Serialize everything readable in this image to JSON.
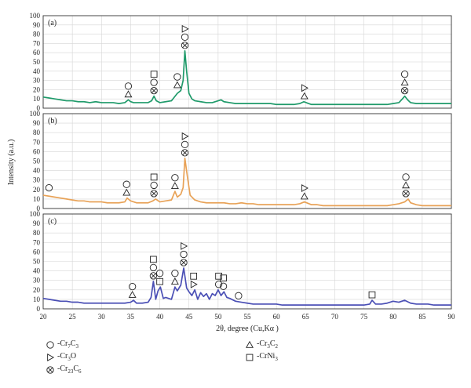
{
  "chart_data": [
    {
      "type": "line",
      "panel_label": "(a)",
      "color": "#1f9a6a",
      "ylim": [
        0,
        100
      ],
      "yticks": [
        0,
        10,
        20,
        30,
        40,
        50,
        60,
        70,
        80,
        90,
        100
      ],
      "x": [
        20,
        21,
        22,
        23,
        24,
        25,
        26,
        27,
        28,
        29,
        30,
        31,
        32,
        33,
        34,
        34.6,
        35,
        35.5,
        36,
        37,
        38,
        38.6,
        39,
        39.4,
        40,
        41,
        42,
        42.5,
        43,
        43.6,
        44,
        44.3,
        44.6,
        45,
        45.5,
        46,
        47,
        48,
        49,
        50,
        50.5,
        51,
        52,
        53,
        54,
        55,
        56,
        57,
        58,
        59,
        60,
        61,
        62,
        63,
        64,
        64.7,
        65.5,
        66,
        67,
        68,
        69,
        70,
        71,
        72,
        73,
        74,
        75,
        76,
        77,
        78,
        79,
        80,
        81,
        81.6,
        82,
        82.5,
        83,
        84,
        85,
        86,
        87,
        88,
        89,
        90
      ],
      "values": [
        12,
        11,
        10,
        9,
        8,
        8,
        7,
        7,
        6,
        7,
        6,
        6,
        6,
        5,
        6,
        9,
        7,
        6,
        6,
        6,
        6,
        8,
        13,
        8,
        6,
        7,
        8,
        12,
        16,
        19,
        30,
        62,
        40,
        16,
        10,
        8,
        7,
        6,
        6,
        8,
        9,
        7,
        6,
        5,
        5,
        5,
        5,
        5,
        5,
        5,
        4,
        4,
        4,
        4,
        5,
        7,
        5,
        4,
        4,
        4,
        4,
        4,
        4,
        4,
        4,
        4,
        4,
        4,
        4,
        4,
        4,
        5,
        6,
        10,
        13,
        9,
        6,
        5,
        5,
        5,
        5,
        5,
        5,
        5
      ],
      "annotations": [
        {
          "x": 34.6,
          "y": 9,
          "symbols": [
            "circle",
            "triangle"
          ]
        },
        {
          "x": 39.0,
          "y": 13,
          "symbols": [
            "square",
            "circle",
            "otimes"
          ]
        },
        {
          "x": 43.0,
          "y": 19,
          "symbols": [
            "circle",
            "triangle"
          ]
        },
        {
          "x": 44.3,
          "y": 62,
          "symbols": [
            "play",
            "circle",
            "otimes"
          ]
        },
        {
          "x": 64.8,
          "y": 7,
          "symbols": [
            "play",
            "triangle"
          ]
        },
        {
          "x": 82.0,
          "y": 13,
          "symbols": [
            "circle",
            "triangle",
            "otimes"
          ]
        }
      ]
    },
    {
      "type": "line",
      "panel_label": "(b)",
      "color": "#e8a257",
      "ylim": [
        0,
        100
      ],
      "yticks": [
        0,
        10,
        20,
        30,
        40,
        50,
        60,
        70,
        80,
        90,
        100
      ],
      "x": [
        20,
        21,
        22,
        23,
        24,
        25,
        26,
        27,
        28,
        29,
        30,
        31,
        32,
        33,
        34,
        34.4,
        35,
        36,
        37,
        38,
        38.8,
        39.3,
        40,
        41,
        42,
        42.6,
        43,
        43.6,
        44,
        44.3,
        44.7,
        45.2,
        46,
        47,
        48,
        49,
        50,
        51,
        52,
        53,
        54,
        55,
        56,
        57,
        58,
        59,
        60,
        61,
        62,
        63,
        64,
        64.8,
        65.6,
        66,
        67,
        68,
        69,
        70,
        71,
        72,
        73,
        74,
        75,
        76,
        77,
        78,
        79,
        80,
        81,
        82,
        82.6,
        83,
        84,
        85,
        86,
        87,
        88,
        89,
        90
      ],
      "values": [
        14,
        13,
        12,
        11,
        10,
        9,
        8,
        8,
        7,
        7,
        7,
        6,
        6,
        6,
        7,
        11,
        8,
        6,
        6,
        6,
        8,
        10,
        7,
        8,
        9,
        18,
        12,
        15,
        22,
        53,
        35,
        14,
        9,
        7,
        6,
        6,
        6,
        6,
        5,
        5,
        6,
        5,
        5,
        4,
        4,
        4,
        4,
        4,
        4,
        4,
        5,
        7,
        5,
        4,
        4,
        3,
        3,
        3,
        3,
        3,
        3,
        3,
        3,
        3,
        3,
        3,
        3,
        4,
        5,
        7,
        10,
        6,
        4,
        3,
        3,
        3,
        3,
        3,
        3
      ],
      "annotations": [
        {
          "x": 21.0,
          "y": 16,
          "symbols": [
            "circle"
          ]
        },
        {
          "x": 34.3,
          "y": 11,
          "symbols": [
            "circle",
            "triangle"
          ]
        },
        {
          "x": 39.0,
          "y": 10,
          "symbols": [
            "square",
            "circle",
            "otimes"
          ]
        },
        {
          "x": 42.6,
          "y": 18,
          "symbols": [
            "circle",
            "triangle"
          ]
        },
        {
          "x": 44.3,
          "y": 53,
          "symbols": [
            "play",
            "circle",
            "otimes"
          ]
        },
        {
          "x": 64.8,
          "y": 7,
          "symbols": [
            "play",
            "triangle"
          ]
        },
        {
          "x": 82.2,
          "y": 10,
          "symbols": [
            "circle",
            "triangle",
            "otimes"
          ]
        }
      ]
    },
    {
      "type": "line",
      "panel_label": "(c)",
      "color": "#4a4fb5",
      "ylim": [
        0,
        100
      ],
      "yticks": [
        0,
        10,
        20,
        30,
        40,
        50,
        60,
        70,
        80,
        90,
        100
      ],
      "x": [
        20,
        21,
        22,
        23,
        24,
        25,
        26,
        27,
        28,
        29,
        30,
        31,
        32,
        33,
        34,
        35,
        35.5,
        36,
        37,
        38,
        38.5,
        38.9,
        39.3,
        39.7,
        40.1,
        40.6,
        41,
        42,
        42.6,
        43,
        43.6,
        44.1,
        44.6,
        45,
        45.5,
        46,
        46.5,
        47,
        47.5,
        48,
        48.5,
        49,
        49.5,
        50,
        50.5,
        51,
        51.5,
        52,
        53,
        54,
        55,
        56,
        57,
        58,
        59,
        60,
        61,
        62,
        63,
        64,
        65,
        66,
        67,
        68,
        69,
        70,
        71,
        72,
        73,
        74,
        75,
        76,
        76.4,
        77,
        78,
        79,
        80,
        81,
        82,
        83,
        84,
        85,
        86,
        87,
        88,
        89,
        90
      ],
      "values": [
        11,
        10,
        9,
        8,
        8,
        7,
        7,
        6,
        6,
        6,
        6,
        6,
        6,
        6,
        6,
        7,
        9,
        6,
        6,
        7,
        12,
        29,
        10,
        19,
        23,
        11,
        12,
        10,
        23,
        19,
        25,
        43,
        22,
        18,
        14,
        20,
        10,
        17,
        13,
        16,
        10,
        16,
        14,
        20,
        14,
        18,
        12,
        11,
        8,
        7,
        6,
        5,
        5,
        5,
        5,
        5,
        4,
        4,
        4,
        4,
        4,
        4,
        4,
        4,
        4,
        4,
        4,
        4,
        4,
        4,
        4,
        5,
        9,
        5,
        5,
        6,
        8,
        7,
        9,
        6,
        5,
        5,
        5,
        4,
        4,
        4,
        4
      ],
      "annotations": [
        {
          "x": 35.3,
          "y": 9,
          "symbols": [
            "circle",
            "triangle"
          ]
        },
        {
          "x": 38.9,
          "y": 29,
          "symbols": [
            "square",
            "circle",
            "otimes"
          ]
        },
        {
          "x": 40.0,
          "y": 23,
          "symbols": [
            "circle",
            "square"
          ]
        },
        {
          "x": 42.6,
          "y": 23,
          "symbols": [
            "circle",
            "triangle"
          ]
        },
        {
          "x": 44.1,
          "y": 43,
          "symbols": [
            "play",
            "circle",
            "otimes"
          ]
        },
        {
          "x": 45.8,
          "y": 20,
          "symbols": [
            "square",
            "play"
          ]
        },
        {
          "x": 50.1,
          "y": 20,
          "symbols": [
            "square",
            "circle"
          ]
        },
        {
          "x": 50.9,
          "y": 18,
          "symbols": [
            "square",
            "circle"
          ]
        },
        {
          "x": 53.5,
          "y": 8,
          "symbols": [
            "circle"
          ]
        },
        {
          "x": 76.4,
          "y": 9,
          "symbols": [
            "square"
          ]
        }
      ]
    }
  ],
  "axes": {
    "xlabel": "2θ, degree (Cu,Kα )",
    "ylabel": "Intensity (a.u.)",
    "xlim": [
      20,
      90
    ],
    "xticks": [
      20,
      25,
      30,
      35,
      40,
      45,
      50,
      55,
      60,
      65,
      70,
      75,
      80,
      85,
      90
    ]
  },
  "legend": [
    {
      "symbol": "circle",
      "prefix": "-Cr",
      "sub1": "7",
      "mid": "C",
      "sub2": "3"
    },
    {
      "symbol": "triangle",
      "prefix": "-Cr",
      "sub1": "3",
      "mid": "C",
      "sub2": "2"
    },
    {
      "symbol": "play",
      "prefix": "-Cr",
      "sub1": "3",
      "mid": "O",
      "sub2": ""
    },
    {
      "symbol": "square",
      "prefix": "-CrNi",
      "sub1": "3",
      "mid": "",
      "sub2": ""
    },
    {
      "symbol": "otimes",
      "prefix": "-Cr",
      "sub1": "23",
      "mid": "C",
      "sub2": "6"
    }
  ]
}
